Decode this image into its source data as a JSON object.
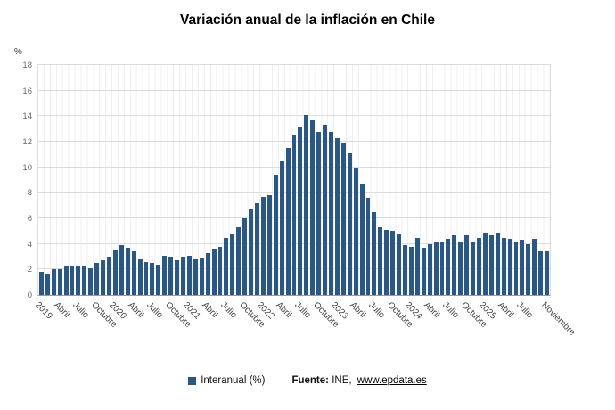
{
  "title": "Variación anual de la inflación en Chile",
  "y_axis_unit": "%",
  "colors": {
    "bar": "#2a5783",
    "grid": "#dcdcdc",
    "vgrid": "#efefef",
    "axis": "#9a9a9a",
    "ticklabel": "#444444"
  },
  "legend": {
    "series_label": "Interanual (%)",
    "source_prefix": "Fuente:",
    "source_name": "INE,",
    "source_link": "www.epdata.es"
  },
  "chart_data": {
    "type": "bar",
    "title": "Variación anual de la inflación en Chile",
    "xlabel": "",
    "ylabel": "%",
    "ylim": [
      0,
      18
    ],
    "yticks": [
      0,
      2,
      4,
      6,
      8,
      10,
      12,
      14,
      16,
      18
    ],
    "grid": true,
    "legend_position": "bottom",
    "legend_entries": [
      "Interanual (%)"
    ],
    "x": [
      "2019-01",
      "2019-02",
      "2019-03",
      "2019-04",
      "2019-05",
      "2019-06",
      "2019-07",
      "2019-08",
      "2019-09",
      "2019-10",
      "2019-11",
      "2019-12",
      "2020-01",
      "2020-02",
      "2020-03",
      "2020-04",
      "2020-05",
      "2020-06",
      "2020-07",
      "2020-08",
      "2020-09",
      "2020-10",
      "2020-11",
      "2020-12",
      "2021-01",
      "2021-02",
      "2021-03",
      "2021-04",
      "2021-05",
      "2021-06",
      "2021-07",
      "2021-08",
      "2021-09",
      "2021-10",
      "2021-11",
      "2021-12",
      "2022-01",
      "2022-02",
      "2022-03",
      "2022-04",
      "2022-05",
      "2022-06",
      "2022-07",
      "2022-08",
      "2022-09",
      "2022-10",
      "2022-11",
      "2022-12",
      "2023-01",
      "2023-02",
      "2023-03",
      "2023-04",
      "2023-05",
      "2023-06",
      "2023-07",
      "2023-08",
      "2023-09",
      "2023-10",
      "2023-11",
      "2023-12",
      "2024-01",
      "2024-02",
      "2024-03",
      "2024-04",
      "2024-05",
      "2024-06",
      "2024-07",
      "2024-08",
      "2024-09",
      "2024-10",
      "2024-11",
      "2024-12",
      "2025-01",
      "2025-02",
      "2025-03",
      "2025-04",
      "2025-05",
      "2025-06",
      "2025-07",
      "2025-08",
      "2025-09",
      "2025-10",
      "2025-11"
    ],
    "values": [
      1.8,
      1.7,
      2.0,
      2.0,
      2.3,
      2.3,
      2.2,
      2.3,
      2.1,
      2.5,
      2.7,
      3.0,
      3.5,
      3.9,
      3.7,
      3.4,
      2.8,
      2.6,
      2.5,
      2.4,
      3.1,
      3.0,
      2.7,
      3.0,
      3.1,
      2.8,
      2.9,
      3.3,
      3.6,
      3.8,
      4.5,
      4.8,
      5.3,
      6.0,
      6.7,
      7.2,
      7.7,
      7.8,
      9.4,
      10.5,
      11.5,
      12.5,
      13.1,
      14.1,
      13.7,
      12.8,
      13.3,
      12.8,
      12.3,
      11.9,
      11.1,
      9.9,
      8.7,
      7.6,
      6.5,
      5.3,
      5.1,
      5.0,
      4.8,
      3.9,
      3.8,
      4.5,
      3.7,
      4.0,
      4.1,
      4.2,
      4.4,
      4.7,
      4.1,
      4.7,
      4.2,
      4.5,
      4.9,
      4.7,
      4.9,
      4.5,
      4.4,
      4.1,
      4.3,
      4.0,
      4.4,
      3.4,
      3.4
    ],
    "xticks": [
      {
        "index": 0,
        "label": "2019"
      },
      {
        "index": 3,
        "label": "Abril"
      },
      {
        "index": 6,
        "label": "Julio"
      },
      {
        "index": 9,
        "label": "Octubre"
      },
      {
        "index": 12,
        "label": "2020"
      },
      {
        "index": 15,
        "label": "Abril"
      },
      {
        "index": 18,
        "label": "Julio"
      },
      {
        "index": 21,
        "label": "Octubre"
      },
      {
        "index": 24,
        "label": "2021"
      },
      {
        "index": 27,
        "label": "Abril"
      },
      {
        "index": 30,
        "label": "Julio"
      },
      {
        "index": 33,
        "label": "Octubre"
      },
      {
        "index": 36,
        "label": "2022"
      },
      {
        "index": 39,
        "label": "Abril"
      },
      {
        "index": 42,
        "label": "Julio"
      },
      {
        "index": 45,
        "label": "Octubre"
      },
      {
        "index": 48,
        "label": "2023"
      },
      {
        "index": 51,
        "label": "Abril"
      },
      {
        "index": 54,
        "label": "Julio"
      },
      {
        "index": 57,
        "label": "Octubre"
      },
      {
        "index": 60,
        "label": "2024"
      },
      {
        "index": 63,
        "label": "Abril"
      },
      {
        "index": 66,
        "label": "Julio"
      },
      {
        "index": 69,
        "label": "Octubre"
      },
      {
        "index": 72,
        "label": "2025"
      },
      {
        "index": 75,
        "label": "Abril"
      },
      {
        "index": 78,
        "label": "Julio"
      },
      {
        "index": 82,
        "label": "Noviembre"
      }
    ]
  }
}
